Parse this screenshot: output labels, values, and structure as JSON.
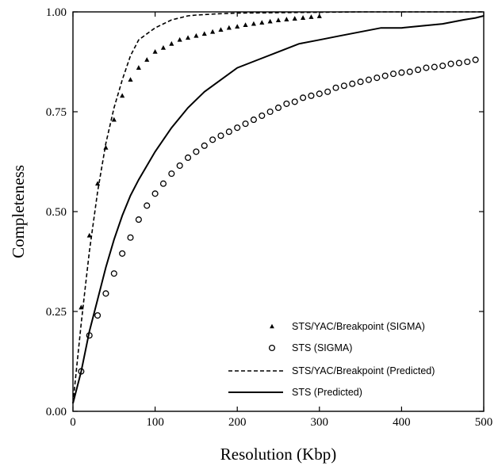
{
  "chart_data": {
    "type": "scatter",
    "xlabel": "Resolution (Kbp)",
    "ylabel": "Completeness",
    "xlim": [
      0,
      500
    ],
    "ylim": [
      0,
      1
    ],
    "x_ticks": [
      "0",
      "100",
      "200",
      "300",
      "400",
      "500"
    ],
    "y_ticks": [
      "0.00",
      "0.25",
      "0.50",
      "0.75",
      "1.00"
    ],
    "grid": false,
    "legend_position": "bottom-right",
    "series": [
      {
        "name": "STS/YAC/Breakpoint (SIGMA)",
        "kind": "triangle-markers",
        "x": [
          10,
          20,
          30,
          40,
          50,
          60,
          70,
          80,
          90,
          100,
          110,
          120,
          130,
          140,
          150,
          160,
          170,
          180,
          190,
          200,
          210,
          220,
          230,
          240,
          250,
          260,
          270,
          280,
          290,
          300
        ],
        "y": [
          0.26,
          0.44,
          0.57,
          0.66,
          0.73,
          0.79,
          0.83,
          0.86,
          0.88,
          0.9,
          0.91,
          0.92,
          0.93,
          0.935,
          0.94,
          0.945,
          0.95,
          0.955,
          0.96,
          0.963,
          0.967,
          0.97,
          0.973,
          0.976,
          0.979,
          0.981,
          0.983,
          0.985,
          0.987,
          0.989
        ]
      },
      {
        "name": "STS (SIGMA)",
        "kind": "circle-markers",
        "x": [
          10,
          20,
          30,
          40,
          50,
          60,
          70,
          80,
          90,
          100,
          110,
          120,
          130,
          140,
          150,
          160,
          170,
          180,
          190,
          200,
          210,
          220,
          230,
          240,
          250,
          260,
          270,
          280,
          290,
          300,
          310,
          320,
          330,
          340,
          350,
          360,
          370,
          380,
          390,
          400,
          410,
          420,
          430,
          440,
          450,
          460,
          470,
          480,
          490
        ],
        "y": [
          0.1,
          0.19,
          0.24,
          0.295,
          0.345,
          0.395,
          0.435,
          0.48,
          0.515,
          0.545,
          0.57,
          0.595,
          0.615,
          0.635,
          0.65,
          0.665,
          0.68,
          0.69,
          0.7,
          0.71,
          0.72,
          0.73,
          0.74,
          0.75,
          0.76,
          0.77,
          0.775,
          0.785,
          0.79,
          0.795,
          0.8,
          0.81,
          0.815,
          0.82,
          0.825,
          0.83,
          0.835,
          0.84,
          0.845,
          0.848,
          0.85,
          0.855,
          0.86,
          0.862,
          0.865,
          0.87,
          0.872,
          0.875,
          0.88
        ]
      },
      {
        "name": "STS/YAC/Breakpoint (Predicted)",
        "kind": "dashed-line",
        "x": [
          0,
          5,
          10,
          15,
          20,
          30,
          40,
          50,
          60,
          70,
          80,
          90,
          100,
          110,
          120,
          130,
          140,
          150,
          175,
          200,
          250,
          300,
          350,
          400,
          450,
          500
        ],
        "y": [
          0.02,
          0.12,
          0.22,
          0.31,
          0.4,
          0.55,
          0.67,
          0.76,
          0.83,
          0.89,
          0.93,
          0.945,
          0.96,
          0.97,
          0.98,
          0.985,
          0.99,
          0.992,
          0.995,
          0.997,
          0.998,
          0.999,
          1.0,
          1.0,
          1.0,
          1.0
        ]
      },
      {
        "name": "STS (Predicted)",
        "kind": "solid-line",
        "x": [
          0,
          10,
          20,
          30,
          40,
          50,
          60,
          70,
          80,
          100,
          120,
          140,
          160,
          180,
          200,
          225,
          250,
          275,
          300,
          325,
          350,
          375,
          400,
          425,
          450,
          475,
          490,
          500
        ],
        "y": [
          0.02,
          0.1,
          0.2,
          0.28,
          0.36,
          0.43,
          0.49,
          0.54,
          0.58,
          0.65,
          0.71,
          0.76,
          0.8,
          0.83,
          0.86,
          0.88,
          0.9,
          0.92,
          0.93,
          0.94,
          0.95,
          0.96,
          0.96,
          0.965,
          0.97,
          0.98,
          0.985,
          0.99
        ]
      }
    ]
  }
}
